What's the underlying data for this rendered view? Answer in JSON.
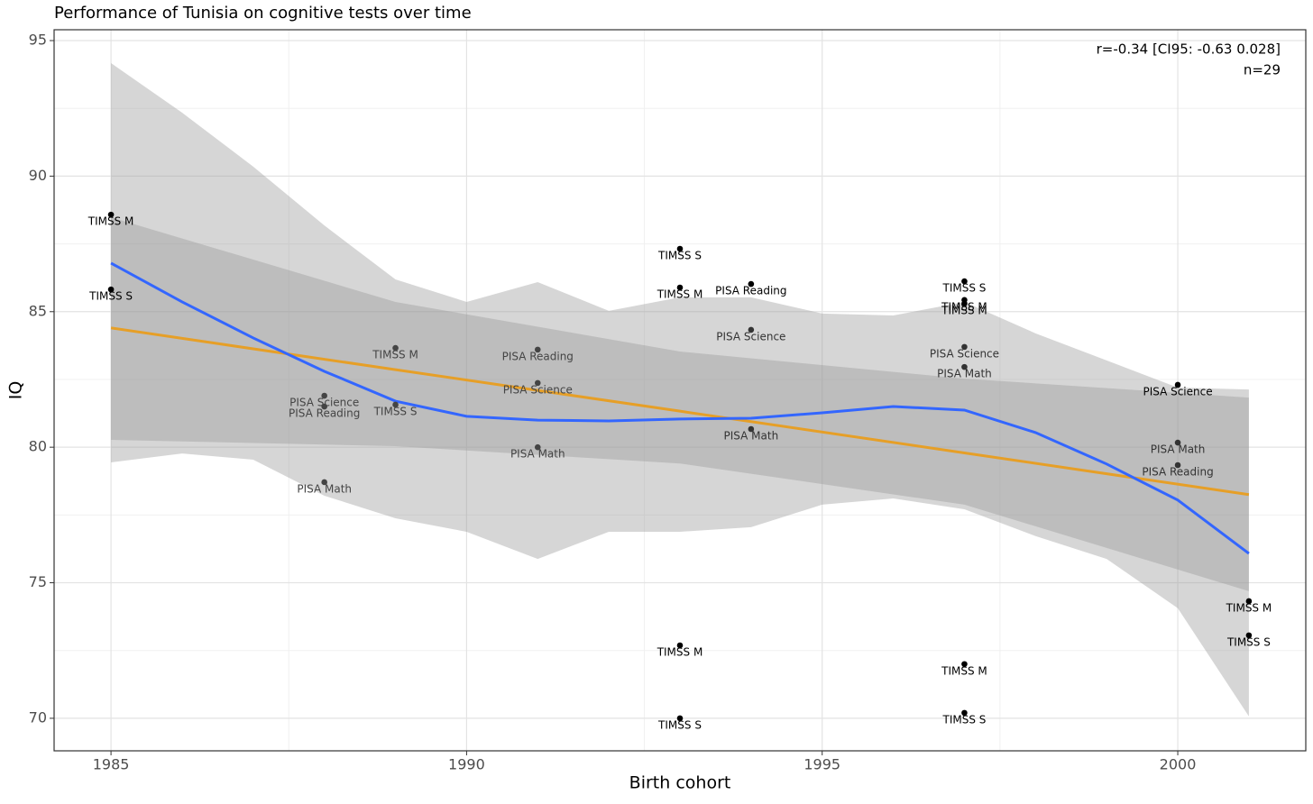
{
  "chart_data": {
    "type": "scatter",
    "title": "Performance of Tunisia on cognitive tests over time",
    "xlabel": "Birth cohort",
    "ylabel": "IQ",
    "xlim": [
      1984.2,
      2001.8
    ],
    "ylim": [
      68.8,
      95.4
    ],
    "xticks": [
      1985,
      1990,
      1995,
      2000
    ],
    "yticks": [
      70,
      75,
      80,
      85,
      90,
      95
    ],
    "xticks_minor": [
      1987.5,
      1992.5,
      1997.5
    ],
    "yticks_minor": [
      72.5,
      77.5,
      82.5,
      87.5,
      92.5
    ],
    "grid": true,
    "annotations": [
      "r=-0.34 [CI95: -0.63 0.028]",
      "n=29"
    ],
    "points": {
      "x": [
        1985,
        1985,
        1988,
        1988,
        1988,
        1989,
        1989,
        1991,
        1991,
        1991,
        1993,
        1993,
        1993,
        1993,
        1994,
        1994,
        1994,
        1997,
        1997,
        1997,
        1997,
        1997,
        1997,
        1997,
        2000,
        2000,
        2000,
        2001,
        2001
      ],
      "y": [
        88.58,
        85.82,
        81.9,
        81.5,
        78.71,
        83.66,
        81.57,
        83.6,
        82.37,
        80.0,
        87.32,
        85.89,
        72.69,
        70.0,
        86.02,
        84.33,
        80.67,
        86.12,
        85.43,
        85.3,
        83.7,
        82.96,
        72.0,
        70.2,
        82.3,
        80.17,
        79.34,
        74.32,
        73.06
      ],
      "labels": [
        "TIMSS M",
        "TIMSS S",
        "PISA Science",
        "PISA Reading",
        "PISA Math",
        "TIMSS M",
        "TIMSS S",
        "PISA Reading",
        "PISA Science",
        "PISA Math",
        "TIMSS S",
        "TIMSS M",
        "TIMSS M",
        "TIMSS S",
        "PISA Reading",
        "PISA Science",
        "PISA Math",
        "TIMSS S",
        "TIMSS M",
        "TIMSS M",
        "PISA Science",
        "PISA Math",
        "TIMSS M",
        "TIMSS S",
        "PISA Science",
        "PISA Math",
        "PISA Reading",
        "TIMSS M",
        "TIMSS S"
      ],
      "colors": [
        "#000000",
        "#000000",
        "#444444",
        "#444444",
        "#444444",
        "#444444",
        "#444444",
        "#444444",
        "#444444",
        "#444444",
        "#000000",
        "#000000",
        "#000000",
        "#000000",
        "#000000",
        "#333333",
        "#333333",
        "#000000",
        "#000000",
        "#000000",
        "#333333",
        "#333333",
        "#000000",
        "#000000",
        "#000000",
        "#333333",
        "#333333",
        "#000000",
        "#000000"
      ]
    },
    "loess": {
      "color": "#3366ff",
      "x": [
        1985,
        1986,
        1987,
        1988,
        1989,
        1990,
        1991,
        1992,
        1993,
        1994,
        1995,
        1996,
        1997,
        1998,
        1999,
        2000,
        2001
      ],
      "values": [
        86.79,
        85.36,
        84.03,
        82.8,
        81.7,
        81.14,
        81.0,
        80.97,
        81.04,
        81.07,
        81.27,
        81.5,
        81.37,
        80.54,
        79.38,
        78.05,
        76.08
      ],
      "upper": [
        94.17,
        92.34,
        90.35,
        88.18,
        86.19,
        85.36,
        86.09,
        85.03,
        85.53,
        85.53,
        84.93,
        84.86,
        85.36,
        84.2,
        83.2,
        82.2,
        82.13
      ],
      "lower": [
        79.44,
        79.77,
        79.54,
        78.21,
        77.38,
        76.88,
        75.88,
        76.88,
        76.88,
        77.05,
        77.88,
        78.11,
        77.71,
        76.72,
        75.88,
        74.06,
        70.07
      ]
    },
    "linear": {
      "color": "#e69f27",
      "x": [
        1985,
        1989,
        1993,
        1997,
        2001
      ],
      "values": [
        84.4,
        82.86,
        81.33,
        79.79,
        78.25
      ],
      "upper": [
        88.48,
        85.36,
        83.53,
        82.53,
        81.83
      ],
      "lower": [
        80.27,
        80.04,
        79.4,
        77.88,
        74.69
      ]
    }
  }
}
